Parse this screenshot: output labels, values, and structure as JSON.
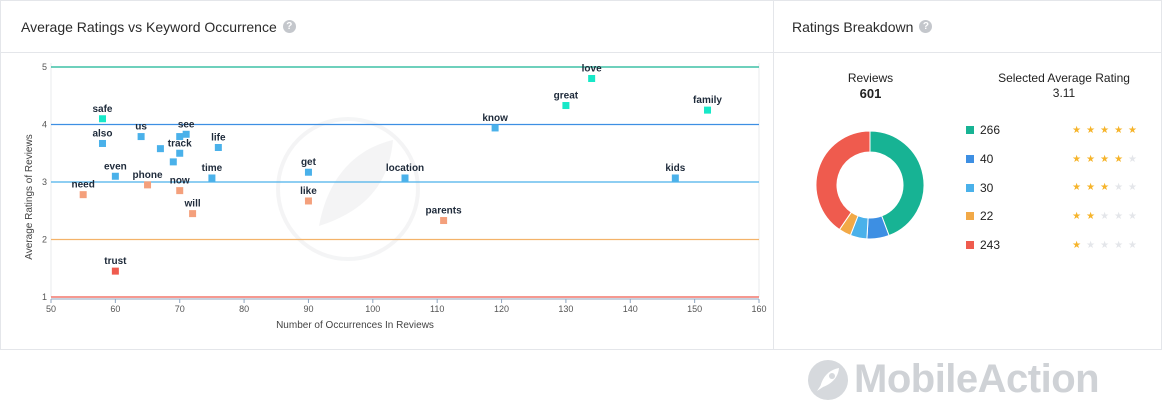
{
  "scatter_panel": {
    "title": "Average Ratings vs Keyword Occurrence",
    "help": "?"
  },
  "breakdown_panel": {
    "title": "Ratings Breakdown",
    "help": "?",
    "reviews_label": "Reviews",
    "reviews_total": "601",
    "avg_label": "Selected Average Rating",
    "avg_value": "3.11",
    "rows": [
      {
        "count": "266",
        "stars": 5,
        "color": "#17b394"
      },
      {
        "count": "40",
        "stars": 4,
        "color": "#3d8fe3"
      },
      {
        "count": "30",
        "stars": 3,
        "color": "#4ab1ea"
      },
      {
        "count": "22",
        "stars": 2,
        "color": "#f2a947"
      },
      {
        "count": "243",
        "stars": 1,
        "color": "#ef5b4e"
      }
    ]
  },
  "brand": {
    "name": "MobileAction"
  },
  "colors": {
    "band5": "#17b394",
    "band4": "#3d8fe3",
    "band3": "#4ab1ea",
    "band2": "#f4b36a",
    "band1": "#ef5b4e",
    "point_high": "#17e8c8",
    "point_mid": "#4ab1ea",
    "point_low": "#f4a07c",
    "point_worst": "#ef5b4e"
  },
  "chart_data": [
    {
      "type": "scatter",
      "title": "Average Ratings vs Keyword Occurrence",
      "xlabel": "Number of Occurrences In Reviews",
      "ylabel": "Average Ratings of Reviews",
      "xlim": [
        50,
        160
      ],
      "ylim": [
        1,
        5
      ],
      "xticks": [
        50,
        60,
        70,
        80,
        90,
        100,
        110,
        120,
        130,
        140,
        150,
        160
      ],
      "yticks": [
        1,
        2,
        3,
        4,
        5
      ],
      "points": [
        {
          "label": "safe",
          "x": 58,
          "y": 4.1,
          "tier": "high"
        },
        {
          "label": "love",
          "x": 134,
          "y": 4.8,
          "tier": "high"
        },
        {
          "label": "great",
          "x": 130,
          "y": 4.33,
          "tier": "high"
        },
        {
          "label": "family",
          "x": 152,
          "y": 4.25,
          "tier": "high"
        },
        {
          "label": "also",
          "x": 58,
          "y": 3.67,
          "tier": "mid"
        },
        {
          "label": "us",
          "x": 64,
          "y": 3.79,
          "tier": "mid"
        },
        {
          "label": "see",
          "x": 71,
          "y": 3.83,
          "tier": "mid"
        },
        {
          "label": "",
          "x": 70,
          "y": 3.79,
          "tier": "mid"
        },
        {
          "label": "track",
          "x": 70,
          "y": 3.5,
          "tier": "mid"
        },
        {
          "label": "",
          "x": 67,
          "y": 3.58,
          "tier": "mid"
        },
        {
          "label": "",
          "x": 69,
          "y": 3.35,
          "tier": "mid"
        },
        {
          "label": "life",
          "x": 76,
          "y": 3.6,
          "tier": "mid"
        },
        {
          "label": "know",
          "x": 119,
          "y": 3.94,
          "tier": "mid"
        },
        {
          "label": "even",
          "x": 60,
          "y": 3.1,
          "tier": "mid"
        },
        {
          "label": "time",
          "x": 75,
          "y": 3.07,
          "tier": "mid"
        },
        {
          "label": "get",
          "x": 90,
          "y": 3.17,
          "tier": "mid"
        },
        {
          "label": "location",
          "x": 105,
          "y": 3.07,
          "tier": "mid"
        },
        {
          "label": "kids",
          "x": 147,
          "y": 3.07,
          "tier": "mid"
        },
        {
          "label": "need",
          "x": 55,
          "y": 2.78,
          "tier": "low"
        },
        {
          "label": "phone",
          "x": 65,
          "y": 2.95,
          "tier": "low"
        },
        {
          "label": "now",
          "x": 70,
          "y": 2.85,
          "tier": "low"
        },
        {
          "label": "like",
          "x": 90,
          "y": 2.67,
          "tier": "low"
        },
        {
          "label": "will",
          "x": 72,
          "y": 2.45,
          "tier": "low"
        },
        {
          "label": "parents",
          "x": 111,
          "y": 2.33,
          "tier": "low"
        },
        {
          "label": "trust",
          "x": 60,
          "y": 1.45,
          "tier": "worst"
        }
      ]
    },
    {
      "type": "pie",
      "title": "Reviews",
      "categories": [
        "5 stars",
        "4 stars",
        "3 stars",
        "2 stars",
        "1 star"
      ],
      "values": [
        266,
        40,
        30,
        22,
        243
      ],
      "total": 601
    }
  ]
}
